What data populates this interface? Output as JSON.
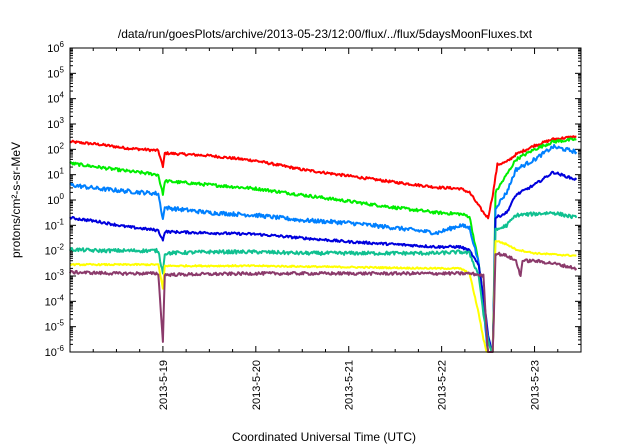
{
  "chart_data": {
    "type": "line",
    "title": "/data/run/goesPlots/archive/2013-05-23/12:00/flux/../flux/5daysMoonFluxes.txt",
    "xlabel": "Coordinated Universal Time (UTC)",
    "ylabel": "protons/cm²-s-sr-MeV",
    "yscale": "log",
    "ylim": [
      1e-06,
      1000000.0
    ],
    "xlim": [
      0,
      5.5
    ],
    "x_unit": "days (relative position along time axis; tick positions at 2013-5-19 … 2013-5-23)",
    "x_ticks": [
      {
        "x": 1,
        "label": "2013-5-19"
      },
      {
        "x": 2,
        "label": "2013-5-20"
      },
      {
        "x": 3,
        "label": "2013-5-21"
      },
      {
        "x": 4,
        "label": "2013-5-22"
      },
      {
        "x": 5,
        "label": "2013-5-23"
      }
    ],
    "y_ticks": [
      {
        "exp": -6
      },
      {
        "exp": -5
      },
      {
        "exp": -4
      },
      {
        "exp": -3
      },
      {
        "exp": -2
      },
      {
        "exp": -1
      },
      {
        "exp": 0
      },
      {
        "exp": 1
      },
      {
        "exp": 2
      },
      {
        "exp": 3
      },
      {
        "exp": 4
      },
      {
        "exp": 5
      },
      {
        "exp": 6
      }
    ],
    "grid": false,
    "legend": "none",
    "series": [
      {
        "color": "#ff0000",
        "noise": 0.05,
        "points": [
          [
            0,
            2.3
          ],
          [
            0.3,
            2.2
          ],
          [
            0.6,
            2.05
          ],
          [
            0.95,
            1.95
          ],
          [
            1.0,
            1.3
          ],
          [
            1.02,
            1.85
          ],
          [
            1.5,
            1.75
          ],
          [
            2.0,
            1.55
          ],
          [
            2.5,
            1.2
          ],
          [
            3.0,
            0.95
          ],
          [
            3.5,
            0.7
          ],
          [
            3.95,
            0.5
          ],
          [
            4.2,
            0.45
          ],
          [
            4.3,
            0.3
          ],
          [
            4.45,
            -0.5
          ],
          [
            4.5,
            -0.7
          ],
          [
            4.55,
            0.2
          ],
          [
            4.6,
            1.4
          ],
          [
            4.7,
            1.5
          ],
          [
            4.8,
            1.8
          ],
          [
            5.0,
            2.15
          ],
          [
            5.2,
            2.4
          ],
          [
            5.45,
            2.5
          ]
        ]
      },
      {
        "color": "#00ee00",
        "noise": 0.06,
        "points": [
          [
            0,
            1.45
          ],
          [
            0.3,
            1.3
          ],
          [
            0.6,
            1.15
          ],
          [
            0.95,
            1.0
          ],
          [
            1.0,
            0.2
          ],
          [
            1.02,
            0.75
          ],
          [
            1.5,
            0.6
          ],
          [
            2.0,
            0.45
          ],
          [
            2.5,
            0.2
          ],
          [
            3.0,
            -0.05
          ],
          [
            3.5,
            -0.3
          ],
          [
            3.95,
            -0.5
          ],
          [
            4.2,
            -0.55
          ],
          [
            4.3,
            -0.65
          ],
          [
            4.4,
            -2.5
          ],
          [
            4.45,
            -4.0
          ],
          [
            4.5,
            -6.2
          ],
          [
            4.55,
            -6.2
          ],
          [
            4.58,
            0.3
          ],
          [
            4.7,
            1.0
          ],
          [
            4.8,
            1.6
          ],
          [
            5.0,
            2.0
          ],
          [
            5.2,
            2.3
          ],
          [
            5.45,
            2.4
          ]
        ]
      },
      {
        "color": "#0080ff",
        "noise": 0.08,
        "points": [
          [
            0,
            0.6
          ],
          [
            0.3,
            0.45
          ],
          [
            0.6,
            0.35
          ],
          [
            0.95,
            0.25
          ],
          [
            1.0,
            -0.75
          ],
          [
            1.02,
            -0.3
          ],
          [
            1.5,
            -0.5
          ],
          [
            2.0,
            -0.6
          ],
          [
            2.5,
            -0.8
          ],
          [
            3.0,
            -0.9
          ],
          [
            3.5,
            -1.1
          ],
          [
            3.95,
            -1.3
          ],
          [
            4.2,
            -1.0
          ],
          [
            4.3,
            -1.1
          ],
          [
            4.4,
            -2.5
          ],
          [
            4.45,
            -4.2
          ],
          [
            4.5,
            -6.2
          ],
          [
            4.55,
            -6.2
          ],
          [
            4.58,
            -0.3
          ],
          [
            4.7,
            0.3
          ],
          [
            4.8,
            1.2
          ],
          [
            5.0,
            1.6
          ],
          [
            5.2,
            2.1
          ],
          [
            5.45,
            1.9
          ]
        ]
      },
      {
        "color": "#0000dd",
        "noise": 0.05,
        "points": [
          [
            0,
            -0.7
          ],
          [
            0.3,
            -0.85
          ],
          [
            0.6,
            -1.05
          ],
          [
            0.95,
            -1.2
          ],
          [
            1.0,
            -1.6
          ],
          [
            1.02,
            -1.25
          ],
          [
            1.5,
            -1.3
          ],
          [
            2.0,
            -1.35
          ],
          [
            2.5,
            -1.5
          ],
          [
            3.0,
            -1.65
          ],
          [
            3.5,
            -1.75
          ],
          [
            3.95,
            -1.85
          ],
          [
            4.2,
            -1.85
          ],
          [
            4.3,
            -2.0
          ],
          [
            4.4,
            -2.6
          ],
          [
            4.45,
            -3.8
          ],
          [
            4.5,
            -5.3
          ],
          [
            4.55,
            -6.2
          ],
          [
            4.58,
            -0.7
          ],
          [
            4.7,
            -0.5
          ],
          [
            4.8,
            0.2
          ],
          [
            5.0,
            0.6
          ],
          [
            5.2,
            1.1
          ],
          [
            5.45,
            0.8
          ]
        ]
      },
      {
        "color": "#10c090",
        "noise": 0.07,
        "points": [
          [
            0,
            -1.95
          ],
          [
            0.3,
            -2.0
          ],
          [
            0.6,
            -2.0
          ],
          [
            0.95,
            -2.0
          ],
          [
            1.0,
            -2.9
          ],
          [
            1.02,
            -2.1
          ],
          [
            1.5,
            -2.05
          ],
          [
            2.0,
            -2.05
          ],
          [
            2.5,
            -2.1
          ],
          [
            3.0,
            -2.1
          ],
          [
            3.5,
            -2.1
          ],
          [
            3.95,
            -2.1
          ],
          [
            4.2,
            -2.05
          ],
          [
            4.3,
            -2.1
          ],
          [
            4.4,
            -3.0
          ],
          [
            4.45,
            -4.5
          ],
          [
            4.5,
            -5.5
          ],
          [
            4.55,
            -6.2
          ],
          [
            4.58,
            -1.2
          ],
          [
            4.7,
            -1.0
          ],
          [
            4.8,
            -0.6
          ],
          [
            5.0,
            -0.55
          ],
          [
            5.2,
            -0.5
          ],
          [
            5.45,
            -0.7
          ]
        ]
      },
      {
        "color": "#ffff00",
        "noise": 0.03,
        "points": [
          [
            0,
            -2.55
          ],
          [
            0.5,
            -2.55
          ],
          [
            0.95,
            -2.55
          ],
          [
            1.0,
            -3.5
          ],
          [
            1.02,
            -2.6
          ],
          [
            2.0,
            -2.6
          ],
          [
            3.0,
            -2.65
          ],
          [
            3.95,
            -2.7
          ],
          [
            4.2,
            -2.7
          ],
          [
            4.3,
            -2.9
          ],
          [
            4.4,
            -4.5
          ],
          [
            4.45,
            -5.5
          ],
          [
            4.5,
            -6.2
          ],
          [
            4.55,
            -6.2
          ],
          [
            4.58,
            -1.6
          ],
          [
            4.7,
            -1.75
          ],
          [
            4.8,
            -1.95
          ],
          [
            5.0,
            -2.1
          ],
          [
            5.2,
            -2.15
          ],
          [
            5.45,
            -2.2
          ]
        ]
      },
      {
        "color": "#8b3a6b",
        "noise": 0.06,
        "points": [
          [
            0,
            -2.85
          ],
          [
            0.5,
            -2.9
          ],
          [
            0.95,
            -2.9
          ],
          [
            1.0,
            -5.6
          ],
          [
            1.02,
            -2.95
          ],
          [
            2.0,
            -2.9
          ],
          [
            3.0,
            -2.9
          ],
          [
            3.95,
            -2.9
          ],
          [
            4.2,
            -2.9
          ],
          [
            4.3,
            -2.9
          ],
          [
            4.4,
            -2.95
          ],
          [
            4.45,
            -3.0
          ],
          [
            4.5,
            -6.2
          ],
          [
            4.55,
            -6.2
          ],
          [
            4.58,
            -2.1
          ],
          [
            4.7,
            -2.2
          ],
          [
            4.8,
            -2.4
          ],
          [
            4.85,
            -3.0
          ],
          [
            4.87,
            -2.4
          ],
          [
            5.0,
            -2.4
          ],
          [
            5.2,
            -2.5
          ],
          [
            5.45,
            -2.7
          ]
        ]
      }
    ]
  }
}
